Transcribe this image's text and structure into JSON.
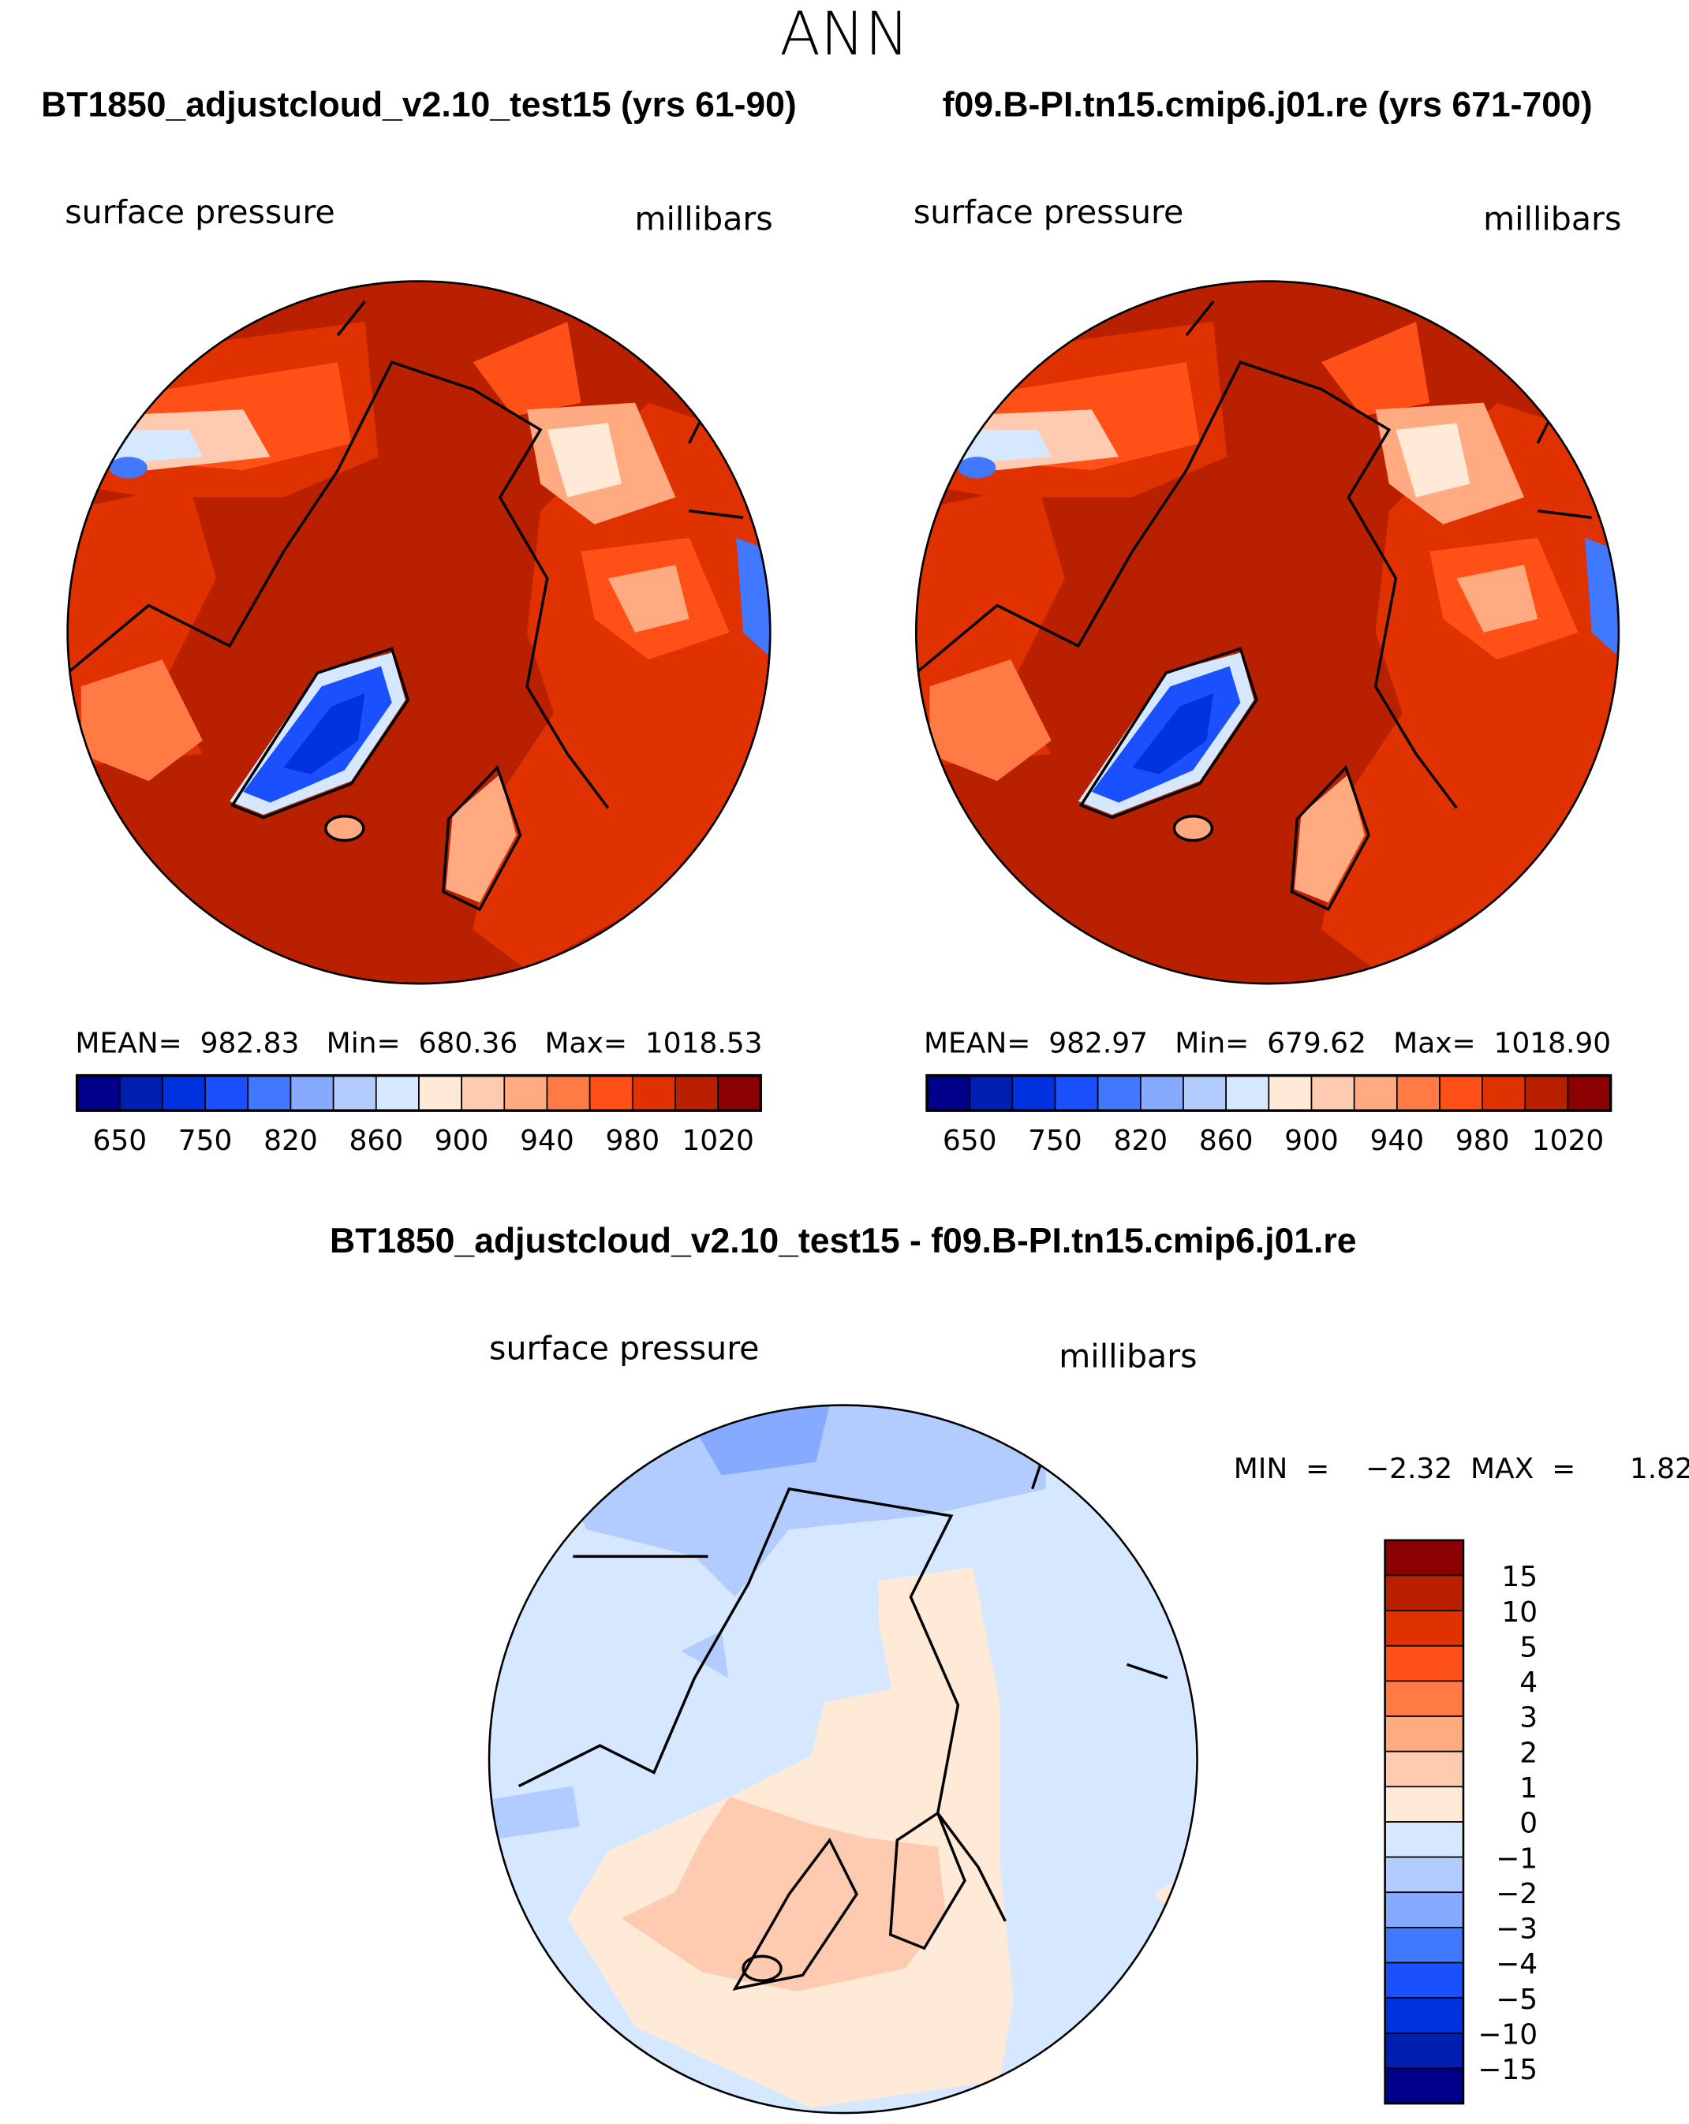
{
  "header": {
    "season": "ANN"
  },
  "panels": [
    {
      "title": "BT1850_adjustcloud_v2.10_test15 (yrs 61-90)",
      "variable": "surface pressure",
      "units": "millibars",
      "stats": "MEAN=  982.83   Min=  680.36   Max=  1018.53"
    },
    {
      "title": "f09.B-PI.tn15.cmip6.j01.re (yrs 671-700)",
      "variable": "surface pressure",
      "units": "millibars",
      "stats": "MEAN=  982.97   Min=  679.62   Max=  1018.90"
    }
  ],
  "diff": {
    "title": "BT1850_adjustcloud_v2.10_test15 - f09.B-PI.tn15.cmip6.j01.re",
    "variable": "surface pressure",
    "units": "millibars",
    "stats": "MIN  =    −2.32  MAX  =      1.82"
  },
  "chart_data": [
    {
      "type": "heatmap",
      "projection": "north polar stereographic",
      "title": "BT1850_adjustcloud_v2.10_test15 (yrs 61-90)",
      "variable": "surface pressure",
      "units": "millibars",
      "mean": 982.83,
      "min": 680.36,
      "max": 1018.53,
      "colorbar_labels": [
        "650",
        "750",
        "820",
        "860",
        "900",
        "940",
        "980",
        "1020"
      ]
    },
    {
      "type": "heatmap",
      "projection": "north polar stereographic",
      "title": "f09.B-PI.tn15.cmip6.j01.re (yrs 671-700)",
      "variable": "surface pressure",
      "units": "millibars",
      "mean": 982.97,
      "min": 679.62,
      "max": 1018.9,
      "colorbar_labels": [
        "650",
        "750",
        "820",
        "860",
        "900",
        "940",
        "980",
        "1020"
      ]
    },
    {
      "type": "heatmap",
      "projection": "north polar stereographic",
      "title": "BT1850_adjustcloud_v2.10_test15 - f09.B-PI.tn15.cmip6.j01.re",
      "variable": "surface pressure",
      "units": "millibars",
      "min": -2.32,
      "max": 1.82,
      "colorbar_labels": [
        "15",
        "10",
        "5",
        "4",
        "3",
        "2",
        "1",
        "0",
        "−1",
        "−2",
        "−3",
        "−4",
        "−5",
        "−10",
        "−15"
      ]
    }
  ],
  "palette": [
    "#00008a",
    "#001eb0",
    "#0032e0",
    "#1a50ff",
    "#4078ff",
    "#85aaff",
    "#b3ccff",
    "#d6e8ff",
    "#ffead8",
    "#ffcbb0",
    "#ffaa80",
    "#ff7a44",
    "#ff5018",
    "#e03200",
    "#b82000",
    "#8b0000"
  ]
}
